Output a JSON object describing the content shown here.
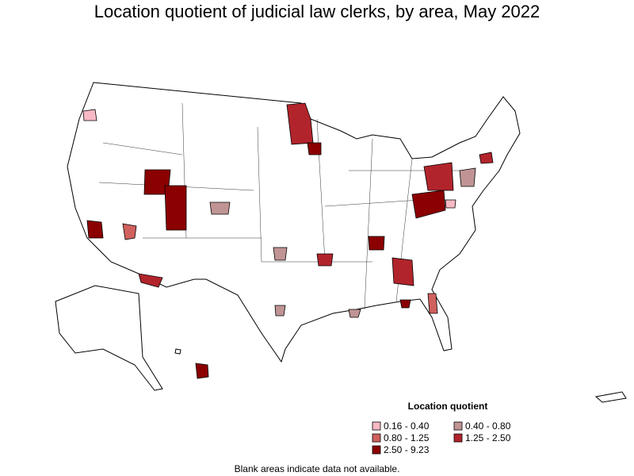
{
  "title": "Location quotient of judicial law clerks, by area, May 2022",
  "legend": {
    "title": "Location quotient",
    "entries": [
      {
        "label": "0.16 - 0.40",
        "color": "#f7b9c4"
      },
      {
        "label": "0.40 - 0.80",
        "color": "#c09494"
      },
      {
        "label": "0.80 - 1.25",
        "color": "#d0605e"
      },
      {
        "label": "1.25 - 2.50",
        "color": "#b2242c"
      },
      {
        "label": "2.50 - 9.23",
        "color": "#8b0000"
      }
    ]
  },
  "footnote": "Blank areas indicate data not available."
}
